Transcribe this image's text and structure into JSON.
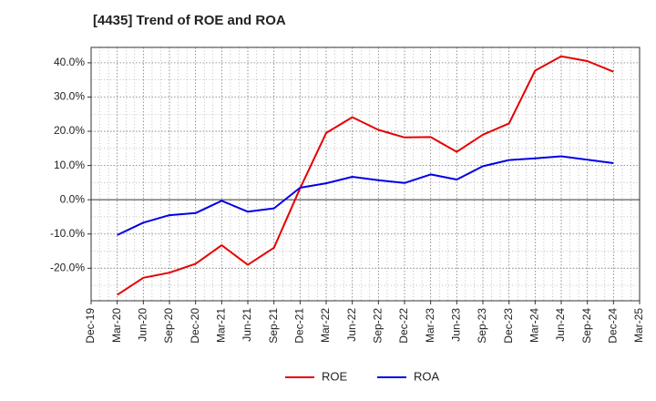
{
  "chart_data": {
    "type": "line",
    "title": "[4435]  Trend of ROE and ROA",
    "xlabel": "",
    "ylabel": "",
    "x": [
      "Mar-20",
      "Jun-20",
      "Sep-20",
      "Dec-20",
      "Mar-21",
      "Jun-21",
      "Sep-21",
      "Dec-21",
      "Mar-22",
      "Jun-22",
      "Sep-22",
      "Dec-22",
      "Mar-23",
      "Jun-23",
      "Sep-23",
      "Dec-23",
      "Mar-24",
      "Jun-24",
      "Sep-24",
      "Dec-24"
    ],
    "x_ticks": [
      "Dec-19",
      "Mar-20",
      "Jun-20",
      "Sep-20",
      "Dec-20",
      "Mar-21",
      "Jun-21",
      "Sep-21",
      "Dec-21",
      "Mar-22",
      "Jun-22",
      "Sep-22",
      "Dec-22",
      "Mar-23",
      "Jun-23",
      "Sep-23",
      "Dec-23",
      "Mar-24",
      "Jun-24",
      "Sep-24",
      "Dec-24",
      "Mar-25"
    ],
    "y_ticks": [
      "40.0%",
      "30.0%",
      "20.0%",
      "10.0%",
      "0.0%",
      "-10.0%",
      "-20.0%"
    ],
    "ylim": [
      -29.5,
      44.5
    ],
    "grid": true,
    "legend_position": "bottom-center",
    "series": [
      {
        "name": "ROE",
        "color": "#e60000",
        "values": [
          -27.8,
          -22.8,
          -21.3,
          -18.7,
          -13.3,
          -19.0,
          -14.0,
          3.3,
          19.5,
          24.1,
          20.4,
          18.2,
          18.3,
          14.0,
          19.0,
          22.3,
          37.7,
          41.9,
          40.5,
          37.4
        ]
      },
      {
        "name": "ROA",
        "color": "#0000e6",
        "values": [
          -10.3,
          -6.7,
          -4.5,
          -3.9,
          -0.3,
          -3.5,
          -2.5,
          3.5,
          4.8,
          6.7,
          5.7,
          4.9,
          7.4,
          5.9,
          9.8,
          11.6,
          12.1,
          12.7,
          11.7,
          10.7
        ]
      }
    ]
  }
}
